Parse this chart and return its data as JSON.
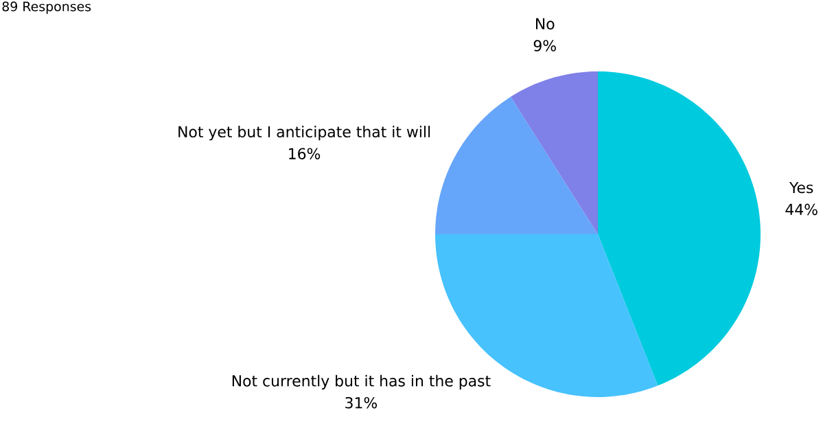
{
  "chart_data": {
    "type": "pie",
    "title": "89 Responses",
    "categories": [
      "Yes",
      "Not currently but it has in the past",
      "Not yet but I anticipate that it will",
      "No"
    ],
    "values": [
      44,
      31,
      16,
      9
    ],
    "value_labels": [
      "44%",
      "31%",
      "16%",
      "9%"
    ],
    "colors": [
      "#00cade",
      "#47c2fd",
      "#66a6fa",
      "#7f80e8"
    ]
  }
}
